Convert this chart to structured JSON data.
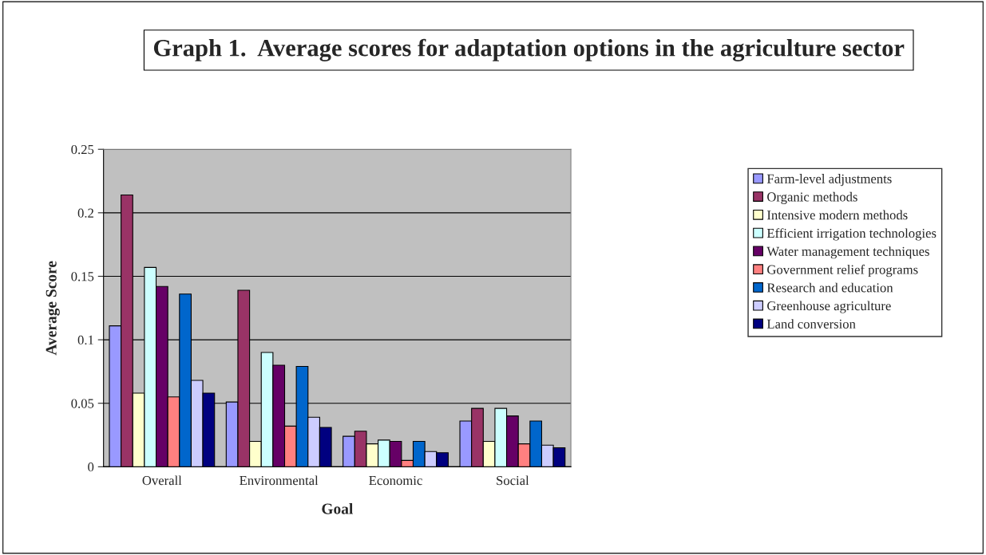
{
  "chart_data": {
    "type": "bar",
    "title": "Graph 1.  Average scores for adaptation options in the agriculture sector",
    "xlabel": "Goal",
    "ylabel": "Average Score",
    "categories": [
      "Overall",
      "Environmental",
      "Economic",
      "Social"
    ],
    "series": [
      {
        "name": "Farm-level adjustments",
        "color": "#9999ff",
        "values": [
          0.111,
          0.051,
          0.024,
          0.036
        ]
      },
      {
        "name": "Organic methods",
        "color": "#993366",
        "values": [
          0.214,
          0.139,
          0.028,
          0.046
        ]
      },
      {
        "name": "Intensive modern methods",
        "color": "#ffffcc",
        "values": [
          0.058,
          0.02,
          0.018,
          0.02
        ]
      },
      {
        "name": "Efficient irrigation technologies",
        "color": "#ccffff",
        "values": [
          0.157,
          0.09,
          0.021,
          0.046
        ]
      },
      {
        "name": "Water management techniques",
        "color": "#660066",
        "values": [
          0.142,
          0.08,
          0.02,
          0.04
        ]
      },
      {
        "name": "Government relief programs",
        "color": "#ff8080",
        "values": [
          0.055,
          0.032,
          0.005,
          0.018
        ]
      },
      {
        "name": "Research and education",
        "color": "#0066cc",
        "values": [
          0.136,
          0.079,
          0.02,
          0.036
        ]
      },
      {
        "name": "Greenhouse agriculture",
        "color": "#ccccff",
        "values": [
          0.068,
          0.039,
          0.012,
          0.017
        ]
      },
      {
        "name": "Land conversion",
        "color": "#000080",
        "values": [
          0.058,
          0.031,
          0.011,
          0.015
        ]
      }
    ],
    "ylim": [
      0,
      0.25
    ],
    "yticks": [
      0,
      0.05,
      0.1,
      0.15,
      0.2,
      0.25
    ],
    "grid": "y",
    "legend": "right"
  }
}
